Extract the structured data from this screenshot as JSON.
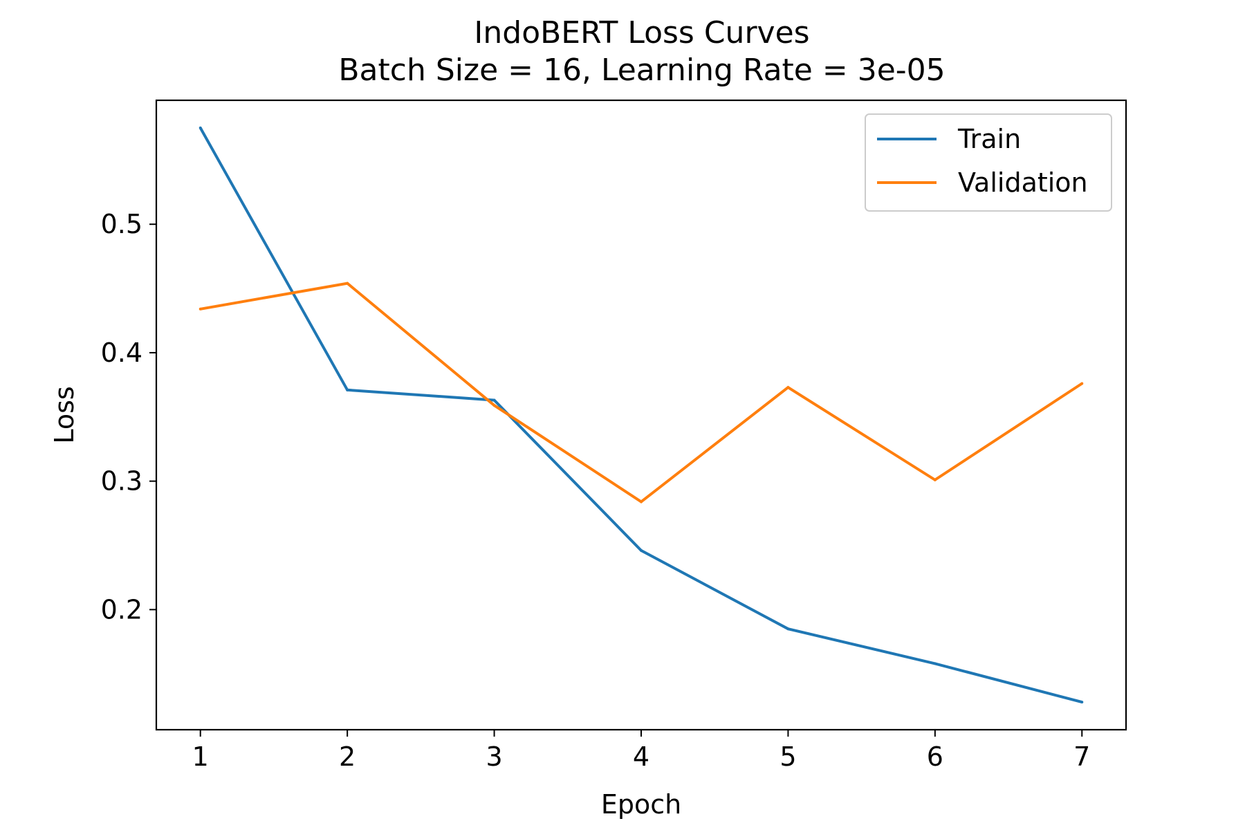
{
  "chart_data": {
    "type": "line",
    "title": "IndoBERT Loss Curves",
    "subtitle": "Batch Size = 16, Learning Rate = 3e-05",
    "xlabel": "Epoch",
    "ylabel": "Loss",
    "x": [
      1,
      2,
      3,
      4,
      5,
      6,
      7
    ],
    "xlim": [
      0.7,
      7.3
    ],
    "ylim": [
      0.1065,
      0.5965
    ],
    "xticks": [
      "1",
      "2",
      "3",
      "4",
      "5",
      "6",
      "7"
    ],
    "yticks": [
      "0.2",
      "0.3",
      "0.4",
      "0.5"
    ],
    "grid": false,
    "legend_position": "top-right",
    "series": [
      {
        "name": "Train",
        "color": "#1f77b4",
        "values": [
          0.575,
          0.371,
          0.363,
          0.246,
          0.185,
          0.158,
          0.128
        ]
      },
      {
        "name": "Validation",
        "color": "#ff7f0e",
        "values": [
          0.434,
          0.454,
          0.359,
          0.284,
          0.373,
          0.301,
          0.376
        ]
      }
    ]
  }
}
